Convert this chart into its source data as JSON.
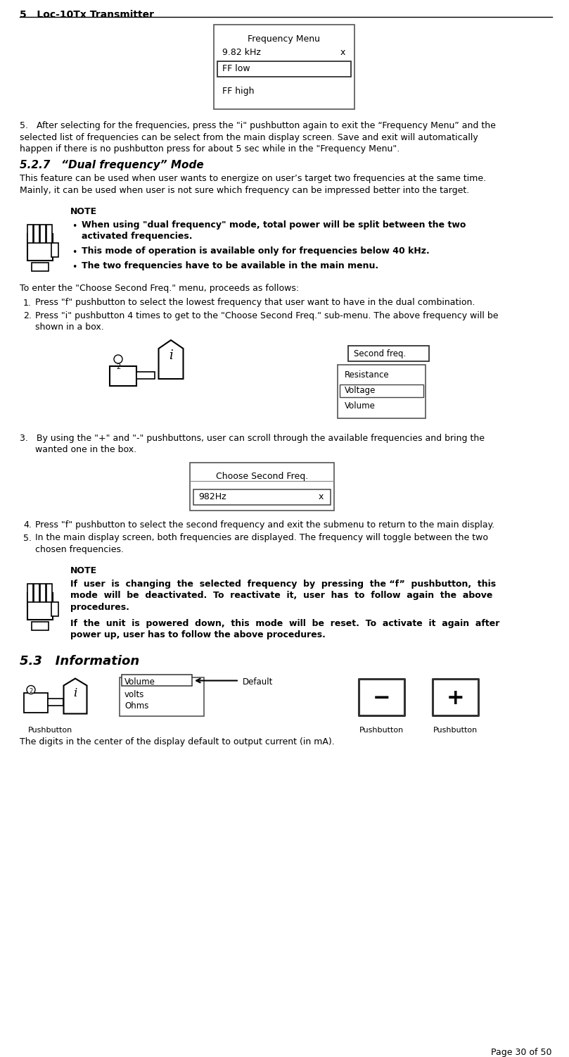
{
  "header_text": "5   Loc-10Tx Transmitter",
  "footer_text": "Page 30 of 50",
  "bg_color": "#ffffff",
  "text_color": "#000000",
  "body_font_size": 9.0,
  "freq_menu_box": {
    "title": "Frequency Menu",
    "line1": "9.82 kHz",
    "line1x": "x",
    "line2_highlighted": "FF low",
    "line3": "FF high"
  },
  "para5_text_lines": [
    "5.   After selecting for the frequencies, press the \"i\" pushbutton again to exit the “Frequency Menu” and the",
    "selected list of frequencies can be select from the main display screen. Save and exit will automatically",
    "happen if there is no pushbutton press for about 5 sec while in the \"Frequency Menu\"."
  ],
  "section_title": "5.2.7   “Dual frequency” Mode",
  "intro_text_lines": [
    "This feature can be used when user wants to energize on user’s target two frequencies at the same time.",
    "Mainly, it can be used when user is not sure which frequency can be impressed better into the target."
  ],
  "note1_title": "NOTE",
  "note1_bullets": [
    [
      "When using \"dual frequency\" mode, total power will be split between the two",
      "activated frequencies."
    ],
    [
      "This mode of operation is available only for frequencies below 40 kHz."
    ],
    [
      "The two frequencies have to be available in the main menu."
    ]
  ],
  "enter_menu_text": "To enter the \"Choose Second Freq.\" menu, proceeds as follows:",
  "step1_text": "Press \"f\" pushbutton to select the lowest frequency that user want to have in the dual combination.",
  "step2_text_lines": [
    "Press \"i\" pushbutton 4 times to get to the \"Choose Second Freq.\" sub-menu. The above frequency will be",
    "shown in a box."
  ],
  "second_freq_menu_items": [
    "Second freq.",
    "Resistance",
    "Voltage",
    "Volume"
  ],
  "second_freq_highlighted": "Second freq.",
  "step3_text_lines": [
    "3.   By using the \"+\" and \"-\" pushbuttons, user can scroll through the available frequencies and bring the",
    "wanted one in the box."
  ],
  "choose_second_freq_title": "Choose Second Freq.",
  "choose_second_freq_val": "982Hz",
  "choose_second_freq_x": "x",
  "step4_text": "Press \"f\" pushbutton to select the second frequency and exit the submenu to return to the main display.",
  "step5_text_lines": [
    "In the main display screen, both frequencies are displayed. The frequency will toggle between the two",
    "chosen frequencies."
  ],
  "note2_title": "NOTE",
  "note2_para1_lines": [
    "If  user  is  changing  the  selected  frequency  by  pressing  the “f”  pushbutton,  this",
    "mode  will  be  deactivated.  To  reactivate  it,  user  has  to  follow  again  the  above",
    "procedures."
  ],
  "note2_para2_lines": [
    "If  the  unit  is  powered  down,  this  mode  will  be  reset.  To  activate  it  again  after",
    "power up, user has to follow the above procedures."
  ],
  "section53_title": "5.3   Information",
  "display_labels": [
    "Volume",
    "volts",
    "Ohms"
  ],
  "default_label": "◄  Default",
  "pushbutton_label": "Pushbutton",
  "final_text": "The digits in the center of the display default to output current (in mA)."
}
